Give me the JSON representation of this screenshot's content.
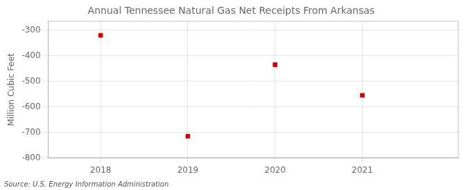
{
  "chart_data": {
    "type": "scatter",
    "title": "Annual Tennessee Natural Gas Net Receipts From Arkansas",
    "ylabel": "Million Cubic Feet",
    "annotations": [
      "Source: U.S. Energy Information Administration"
    ],
    "x": [
      2018,
      2019,
      2020,
      2021
    ],
    "values": [
      -320,
      -715,
      -435,
      -555
    ],
    "color": "#cc0000",
    "marker": "square",
    "xlim": [
      2017.4,
      2022.1
    ],
    "xticks": [
      2018,
      2019,
      2020,
      2021
    ],
    "ylim": [
      -800,
      -265
    ],
    "yticks": [
      -800,
      -700,
      -600,
      -500,
      -400,
      -300
    ],
    "grid": true
  }
}
